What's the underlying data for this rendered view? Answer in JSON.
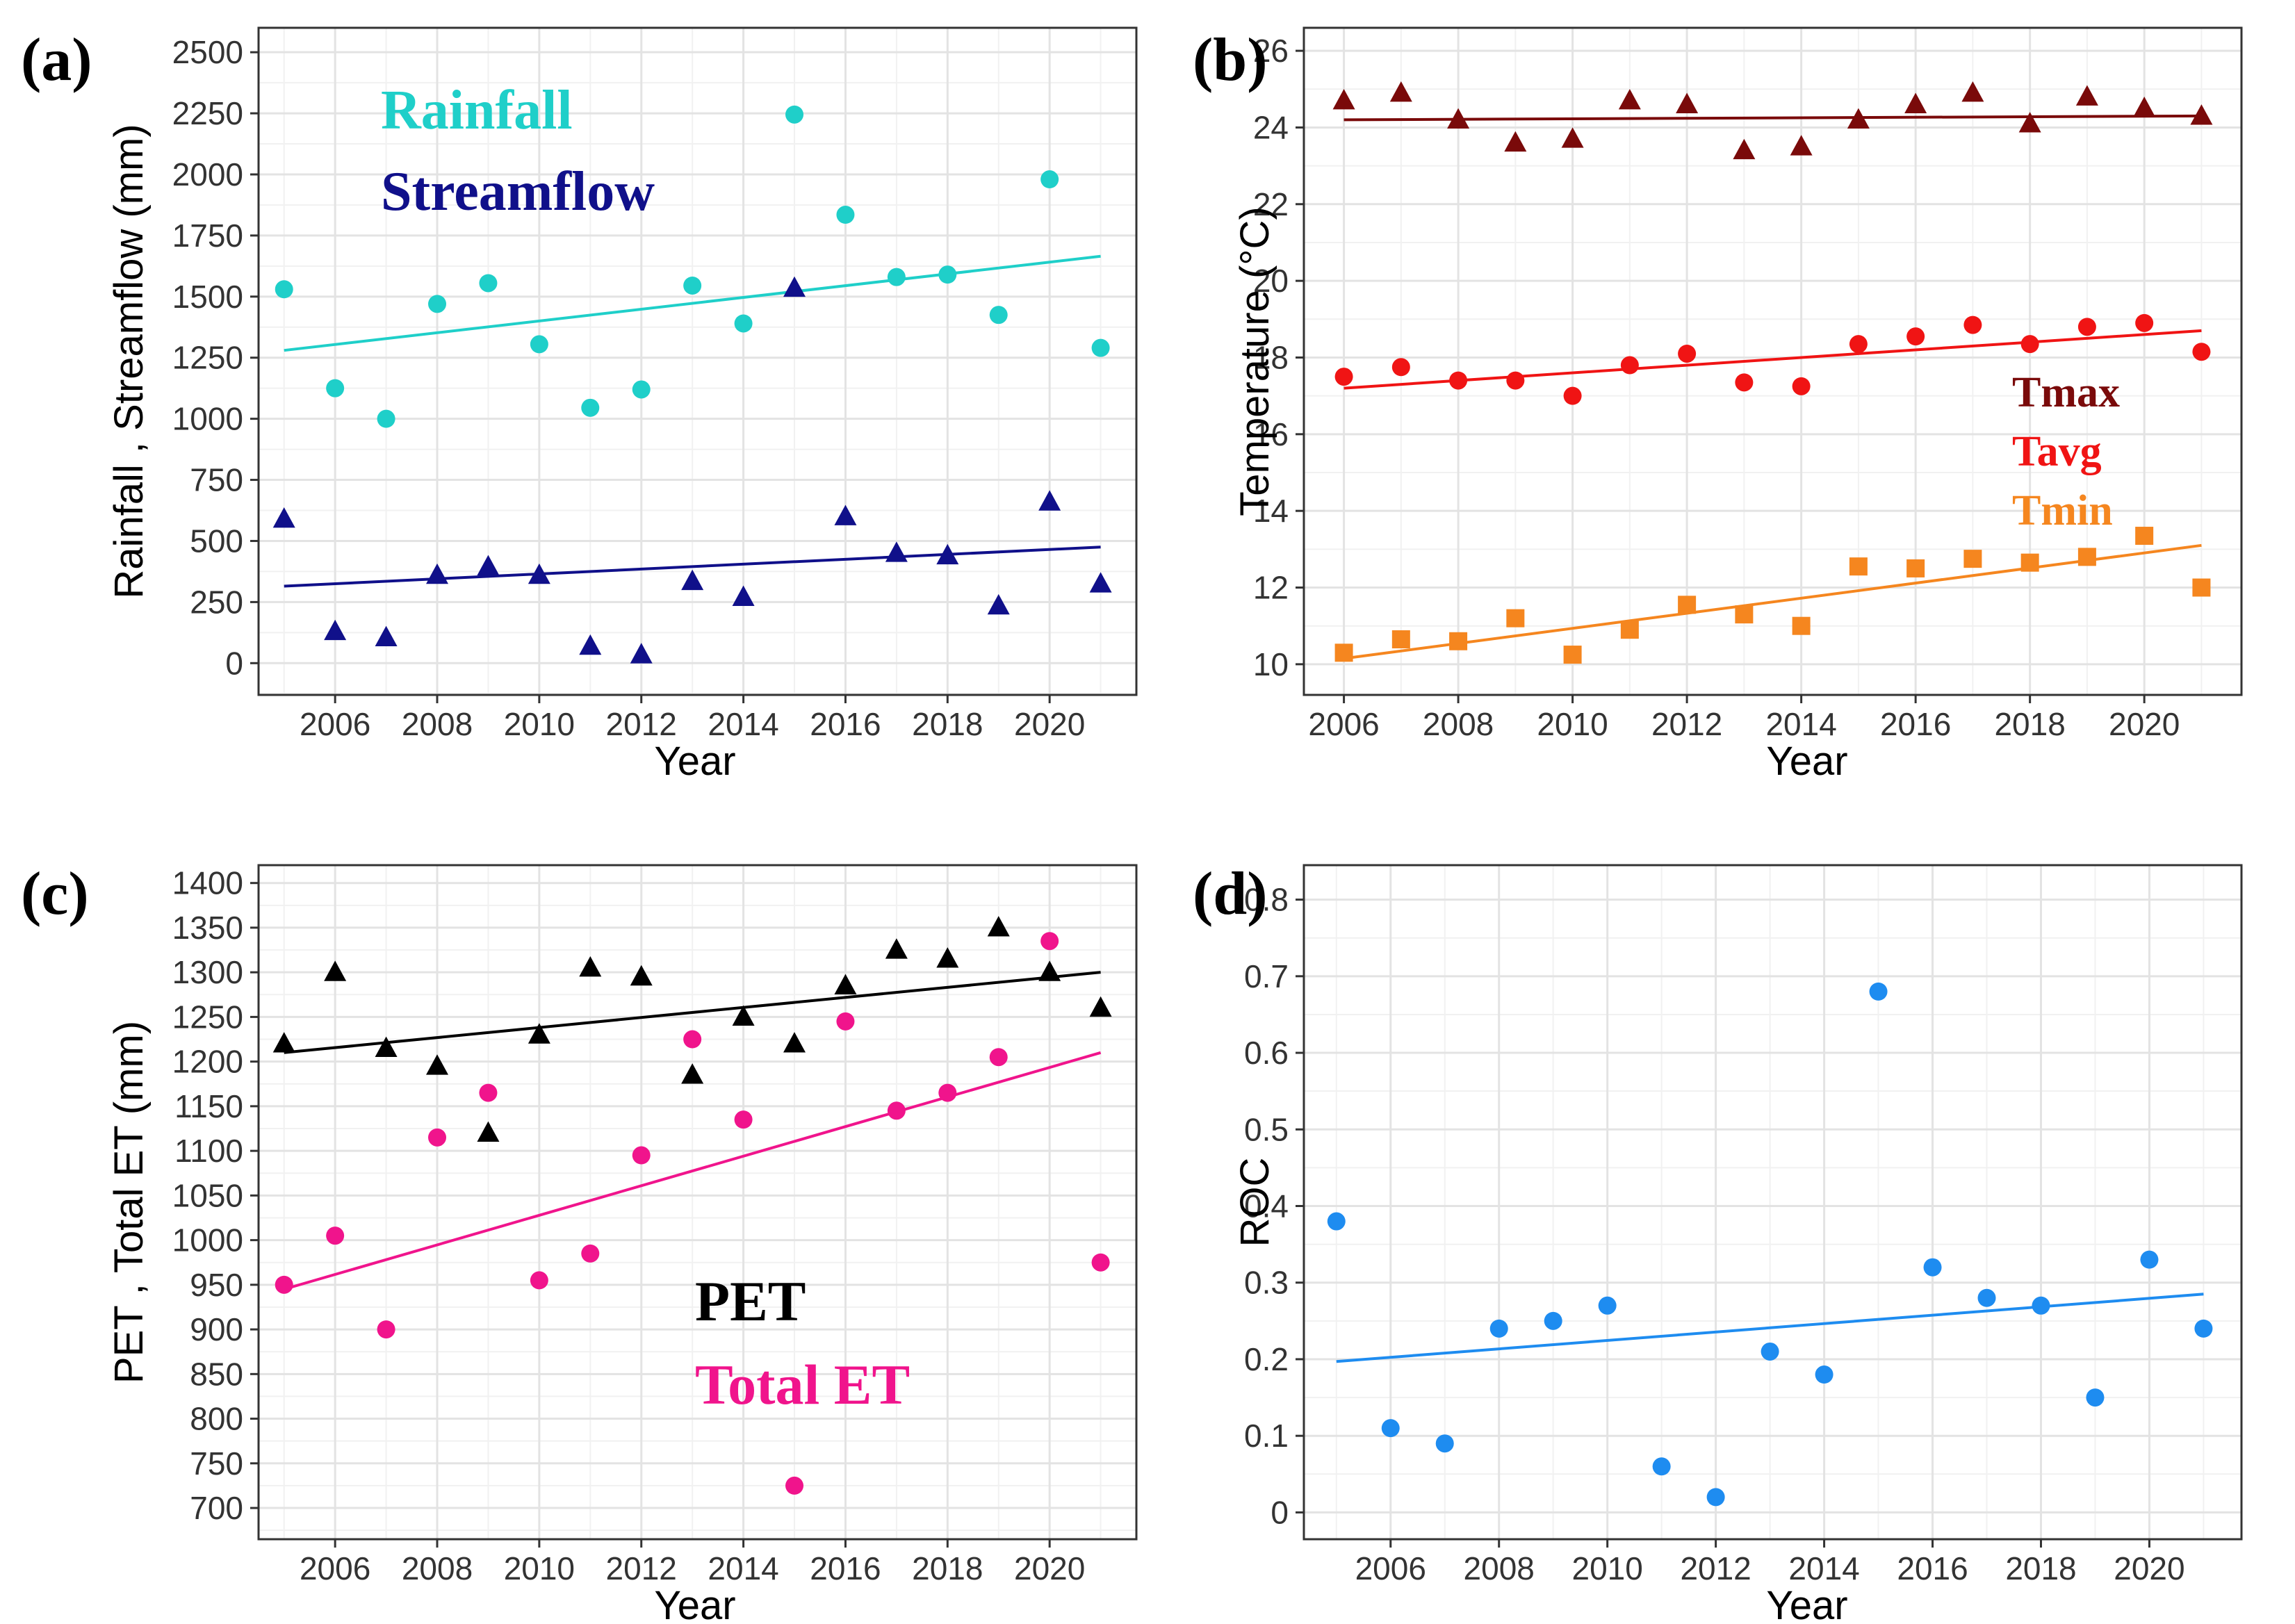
{
  "chart_data": [
    {
      "panel": "(a)",
      "type": "scatter",
      "xlabel": "Year",
      "ylabel": "Rainfall , Streamflow (mm)",
      "xlim": [
        2004.5,
        2021.7
      ],
      "ylim": [
        -130,
        2600
      ],
      "xticks": [
        2006,
        2008,
        2010,
        2012,
        2014,
        2016,
        2018,
        2020
      ],
      "yticks": [
        0,
        250,
        500,
        750,
        1000,
        1250,
        1500,
        1750,
        2000,
        2250,
        2500
      ],
      "grid": true,
      "legend_position": "top-left",
      "series": [
        {
          "name": "Rainfall",
          "color": "#1fcfc9",
          "marker": "circle",
          "x": [
            2005,
            2006,
            2007,
            2008,
            2009,
            2010,
            2011,
            2012,
            2013,
            2014,
            2015,
            2016,
            2017,
            2018,
            2019,
            2020,
            2021
          ],
          "values": [
            1530,
            1125,
            1000,
            1470,
            1555,
            1305,
            1045,
            1120,
            1545,
            1390,
            2245,
            1835,
            1580,
            1590,
            1425,
            1980,
            1290
          ],
          "trend": [
            1280,
            1665
          ]
        },
        {
          "name": "Streamflow",
          "color": "#10108a",
          "marker": "triangle",
          "x": [
            2005,
            2006,
            2007,
            2008,
            2009,
            2010,
            2011,
            2012,
            2013,
            2014,
            2015,
            2016,
            2017,
            2018,
            2019,
            2020,
            2021
          ],
          "values": [
            590,
            130,
            105,
            360,
            395,
            360,
            70,
            35,
            335,
            270,
            1535,
            600,
            450,
            440,
            235,
            660,
            325
          ],
          "trend": [
            315,
            475
          ]
        }
      ]
    },
    {
      "panel": "(b)",
      "type": "scatter",
      "xlabel": "Year",
      "ylabel": "Temperature (°C)",
      "xlim": [
        2005.3,
        2021.7
      ],
      "ylim": [
        9.2,
        26.6
      ],
      "xticks": [
        2006,
        2008,
        2010,
        2012,
        2014,
        2016,
        2018,
        2020
      ],
      "yticks": [
        10,
        12,
        14,
        16,
        18,
        20,
        22,
        24,
        26
      ],
      "grid": true,
      "legend_position": "center-right",
      "series": [
        {
          "name": "Tmax",
          "color": "#7a0a0a",
          "marker": "triangle",
          "x": [
            2006,
            2007,
            2008,
            2009,
            2010,
            2011,
            2012,
            2013,
            2014,
            2015,
            2016,
            2017,
            2018,
            2019,
            2020,
            2021
          ],
          "values": [
            24.7,
            24.9,
            24.2,
            23.6,
            23.7,
            24.7,
            24.6,
            23.4,
            23.5,
            24.2,
            24.6,
            24.9,
            24.1,
            24.8,
            24.5,
            24.3
          ],
          "trend": [
            24.2,
            24.3
          ]
        },
        {
          "name": "Tavg",
          "color": "#f01414",
          "marker": "circle",
          "x": [
            2006,
            2007,
            2008,
            2009,
            2010,
            2011,
            2012,
            2013,
            2014,
            2015,
            2016,
            2017,
            2018,
            2019,
            2020,
            2021
          ],
          "values": [
            17.5,
            17.75,
            17.4,
            17.4,
            17.0,
            17.8,
            18.1,
            17.35,
            17.25,
            18.35,
            18.55,
            18.85,
            18.35,
            18.8,
            18.9,
            18.15
          ],
          "trend": [
            17.2,
            18.7
          ]
        },
        {
          "name": "Tmin",
          "color": "#f5861f",
          "marker": "square",
          "x": [
            2006,
            2007,
            2008,
            2009,
            2010,
            2011,
            2012,
            2013,
            2014,
            2015,
            2016,
            2017,
            2018,
            2019,
            2020,
            2021
          ],
          "values": [
            10.3,
            10.65,
            10.6,
            11.2,
            10.25,
            10.9,
            11.55,
            11.3,
            11.0,
            12.55,
            12.5,
            12.75,
            12.65,
            12.8,
            13.35,
            12.0
          ],
          "trend": [
            10.15,
            13.1
          ]
        }
      ]
    },
    {
      "panel": "(c)",
      "type": "scatter",
      "xlabel": "Year",
      "ylabel": "PET , Total ET (mm)",
      "xlim": [
        2004.5,
        2021.7
      ],
      "ylim": [
        665,
        1420
      ],
      "xticks": [
        2006,
        2008,
        2010,
        2012,
        2014,
        2016,
        2018,
        2020
      ],
      "yticks": [
        700,
        750,
        800,
        850,
        900,
        950,
        1000,
        1050,
        1100,
        1150,
        1200,
        1250,
        1300,
        1350,
        1400
      ],
      "grid": true,
      "legend_position": "bottom-center",
      "series": [
        {
          "name": "PET",
          "color": "#000000",
          "marker": "triangle",
          "x": [
            2005,
            2006,
            2007,
            2008,
            2009,
            2010,
            2011,
            2012,
            2013,
            2014,
            2015,
            2016,
            2017,
            2018,
            2019,
            2020,
            2021
          ],
          "values": [
            1220,
            1300,
            1215,
            1195,
            1120,
            1230,
            1305,
            1295,
            1185,
            1250,
            1220,
            1285,
            1325,
            1315,
            1350,
            1300,
            1260
          ],
          "trend": [
            1210,
            1300
          ]
        },
        {
          "name": "Total ET",
          "color": "#f0148c",
          "marker": "circle",
          "x": [
            2005,
            2006,
            2007,
            2008,
            2009,
            2010,
            2011,
            2012,
            2013,
            2014,
            2015,
            2016,
            2017,
            2018,
            2019,
            2020,
            2021
          ],
          "values": [
            950,
            1005,
            900,
            1115,
            1165,
            955,
            985,
            1095,
            1225,
            1135,
            725,
            1245,
            1145,
            1165,
            1205,
            1335,
            975
          ],
          "trend": [
            945,
            1210
          ]
        }
      ]
    },
    {
      "panel": "(d)",
      "type": "scatter",
      "xlabel": "Year",
      "ylabel": "ROC",
      "xlim": [
        2004.4,
        2021.7
      ],
      "ylim": [
        -0.035,
        0.845
      ],
      "xticks": [
        2006,
        2008,
        2010,
        2012,
        2014,
        2016,
        2018,
        2020
      ],
      "yticks": [
        0,
        0.1,
        0.2,
        0.3,
        0.4,
        0.5,
        0.6,
        0.7,
        0.8
      ],
      "grid": true,
      "series": [
        {
          "name": "ROC",
          "color": "#1e8cf0",
          "marker": "circle",
          "x": [
            2005,
            2006,
            2007,
            2008,
            2009,
            2010,
            2011,
            2012,
            2013,
            2014,
            2015,
            2016,
            2017,
            2018,
            2019,
            2020,
            2021
          ],
          "values": [
            0.38,
            0.11,
            0.09,
            0.24,
            0.25,
            0.27,
            0.06,
            0.02,
            0.21,
            0.18,
            0.68,
            0.32,
            0.28,
            0.27,
            0.15,
            0.33,
            0.24
          ],
          "trend": [
            0.197,
            0.285
          ]
        }
      ]
    }
  ]
}
